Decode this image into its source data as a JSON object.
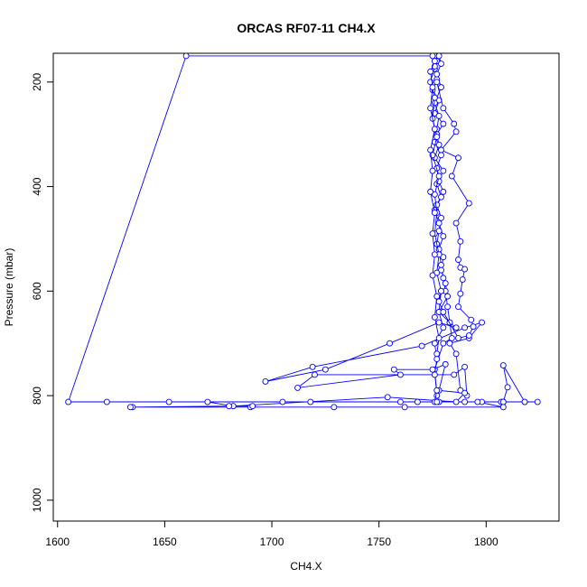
{
  "chart_data": {
    "type": "line",
    "title": "ORCAS RF07-11 CH4.X",
    "xlabel": "CH4.X",
    "ylabel": "Pressure (mbar)",
    "xlim": [
      1598,
      1834
    ],
    "ylim": [
      1040,
      145
    ],
    "y_reversed": true,
    "x_ticks": [
      1600,
      1650,
      1700,
      1750,
      1800
    ],
    "y_ticks": [
      200,
      400,
      600,
      800,
      1000
    ],
    "grid": false,
    "legend": "none",
    "series_color": "#0000ff",
    "marker": "open-circle",
    "series": [
      {
        "points": [
          [
            1776,
            150
          ],
          [
            1777,
            160
          ],
          [
            1776,
            175
          ],
          [
            1777,
            195
          ],
          [
            1775,
            215
          ],
          [
            1778,
            235
          ],
          [
            1776,
            260
          ],
          [
            1780,
            280
          ],
          [
            1777,
            300
          ],
          [
            1778,
            320
          ],
          [
            1776,
            345
          ],
          [
            1780,
            370
          ],
          [
            1777,
            395
          ],
          [
            1779,
            420
          ],
          [
            1776,
            445
          ],
          [
            1778,
            470
          ],
          [
            1780,
            495
          ],
          [
            1778,
            520
          ],
          [
            1779,
            550
          ],
          [
            1780,
            575
          ],
          [
            1781,
            600
          ],
          [
            1782,
            630
          ],
          [
            1783,
            660
          ],
          [
            1784,
            690
          ],
          [
            1780,
            700
          ],
          [
            1776,
            750
          ],
          [
            1777,
            800
          ],
          [
            1778,
            812
          ],
          [
            1790,
            812
          ],
          [
            1808,
            812
          ],
          [
            1818,
            812
          ],
          [
            1824,
            812
          ],
          [
            1808,
            812
          ],
          [
            1798,
            812
          ],
          [
            1760,
            812
          ],
          [
            1705,
            812
          ],
          [
            1652,
            812
          ],
          [
            1623,
            812
          ],
          [
            1605,
            812
          ],
          [
            1660,
            150
          ],
          [
            1778,
            150
          ],
          [
            1779,
            165
          ],
          [
            1777,
            185
          ],
          [
            1779,
            210
          ],
          [
            1776,
            240
          ],
          [
            1778,
            265
          ],
          [
            1777,
            290
          ],
          [
            1776,
            315
          ],
          [
            1779,
            340
          ],
          [
            1777,
            365
          ],
          [
            1778,
            390
          ],
          [
            1780,
            410
          ],
          [
            1777,
            435
          ],
          [
            1779,
            460
          ],
          [
            1778,
            485
          ],
          [
            1777,
            510
          ],
          [
            1780,
            535
          ],
          [
            1779,
            560
          ],
          [
            1781,
            585
          ],
          [
            1782,
            610
          ],
          [
            1778,
            640
          ],
          [
            1783,
            660
          ],
          [
            1786,
            670
          ],
          [
            1778,
            660
          ],
          [
            1755,
            700
          ],
          [
            1725,
            750
          ],
          [
            1697,
            773
          ],
          [
            1719,
            745
          ],
          [
            1770,
            705
          ],
          [
            1790,
            670
          ],
          [
            1798,
            660
          ],
          [
            1792,
            690
          ],
          [
            1783,
            700
          ],
          [
            1786,
            720
          ],
          [
            1788,
            790
          ],
          [
            1791,
            800
          ],
          [
            1790,
            745
          ],
          [
            1785,
            760
          ],
          [
            1720,
            760
          ],
          [
            1712,
            785
          ],
          [
            1760,
            760
          ],
          [
            1757,
            750
          ],
          [
            1775,
            750
          ],
          [
            1781,
            740
          ],
          [
            1778,
            790
          ],
          [
            1790,
            795
          ],
          [
            1786,
            812
          ],
          [
            1754,
            803
          ],
          [
            1682,
            820
          ],
          [
            1670,
            812
          ],
          [
            1718,
            812
          ],
          [
            1768,
            812
          ],
          [
            1807,
            812
          ],
          [
            1818,
            812
          ],
          [
            1808,
            742
          ],
          [
            1810,
            784
          ],
          [
            1808,
            812
          ],
          [
            1796,
            812
          ],
          [
            1808,
            822
          ],
          [
            1762,
            822
          ],
          [
            1729,
            822
          ],
          [
            1690,
            822
          ],
          [
            1635,
            822
          ],
          [
            1634,
            822
          ],
          [
            1680,
            820
          ],
          [
            1691,
            820
          ]
        ]
      },
      {
        "points": [
          [
            1775,
            150
          ],
          [
            1776,
            170
          ],
          [
            1774,
            200
          ],
          [
            1776,
            230
          ],
          [
            1775,
            270
          ],
          [
            1777,
            305
          ],
          [
            1775,
            340
          ],
          [
            1778,
            380
          ],
          [
            1776,
            415
          ],
          [
            1777,
            450
          ],
          [
            1776,
            490
          ],
          [
            1778,
            530
          ],
          [
            1777,
            565
          ],
          [
            1779,
            600
          ],
          [
            1778,
            640
          ],
          [
            1780,
            670
          ],
          [
            1776,
            700
          ],
          [
            1777,
            730
          ],
          [
            1776,
            760
          ],
          [
            1777,
            790
          ],
          [
            1776,
            812
          ],
          [
            1777,
            812
          ]
        ]
      },
      {
        "points": [
          [
            1777,
            200
          ],
          [
            1780,
            250
          ],
          [
            1785,
            280
          ],
          [
            1786,
            295
          ],
          [
            1779,
            330
          ],
          [
            1787,
            345
          ],
          [
            1784,
            380
          ],
          [
            1792,
            432
          ],
          [
            1786,
            470
          ],
          [
            1788,
            505
          ],
          [
            1787,
            540
          ],
          [
            1788,
            555
          ],
          [
            1790,
            558
          ],
          [
            1789,
            578
          ],
          [
            1788,
            605
          ],
          [
            1787,
            630
          ],
          [
            1793,
            655
          ],
          [
            1794,
            668
          ],
          [
            1792,
            685
          ],
          [
            1787,
            690
          ],
          [
            1780,
            640
          ],
          [
            1778,
            620
          ],
          [
            1779,
            600
          ]
        ]
      },
      {
        "points": [
          [
            1776,
            160
          ],
          [
            1774,
            180
          ],
          [
            1775,
            210
          ],
          [
            1774,
            250
          ],
          [
            1776,
            290
          ],
          [
            1774,
            330
          ],
          [
            1775,
            370
          ],
          [
            1774,
            410
          ],
          [
            1776,
            450
          ],
          [
            1775,
            490
          ],
          [
            1776,
            530
          ],
          [
            1775,
            570
          ],
          [
            1777,
            610
          ],
          [
            1776,
            650
          ],
          [
            1778,
            690
          ],
          [
            1777,
            720
          ]
        ]
      }
    ]
  }
}
